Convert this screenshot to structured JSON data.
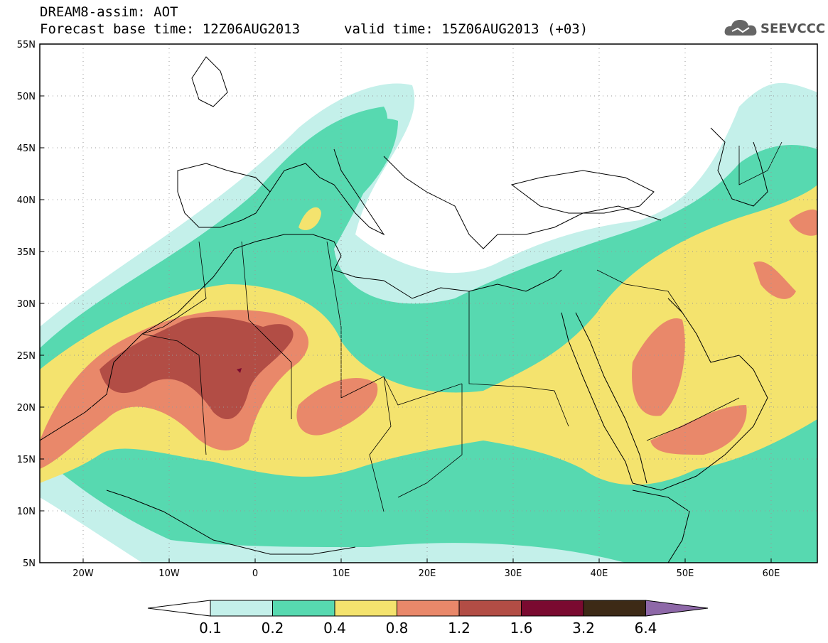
{
  "header": {
    "model_line": "DREAM8-assim: AOT",
    "base_time_line": "Forecast base time: 12Z06AUG2013",
    "valid_time_line": "valid time: 15Z06AUG2013 (+03)",
    "logo_text": "SEEVCCC"
  },
  "map": {
    "lon_range": [
      -25,
      65
    ],
    "lat_range": [
      5,
      55
    ],
    "lat_labels": [
      "5N",
      "10N",
      "15N",
      "20N",
      "25N",
      "30N",
      "35N",
      "40N",
      "45N",
      "50N",
      "55N"
    ],
    "lon_labels": [
      "20W",
      "10W",
      "0",
      "10E",
      "20E",
      "30E",
      "40E",
      "50E",
      "60E"
    ],
    "grid": "dotted"
  },
  "colorbar": {
    "levels": [
      "0.1",
      "0.2",
      "0.4",
      "0.8",
      "1.2",
      "1.6",
      "3.2",
      "6.4"
    ],
    "colors": [
      "#c4f0ea",
      "#57d9b0",
      "#f4e36e",
      "#e9886a",
      "#b24d45",
      "#7a0a30",
      "#3d2a16",
      "#8e68a8"
    ],
    "below_color": "#ffffff"
  }
}
